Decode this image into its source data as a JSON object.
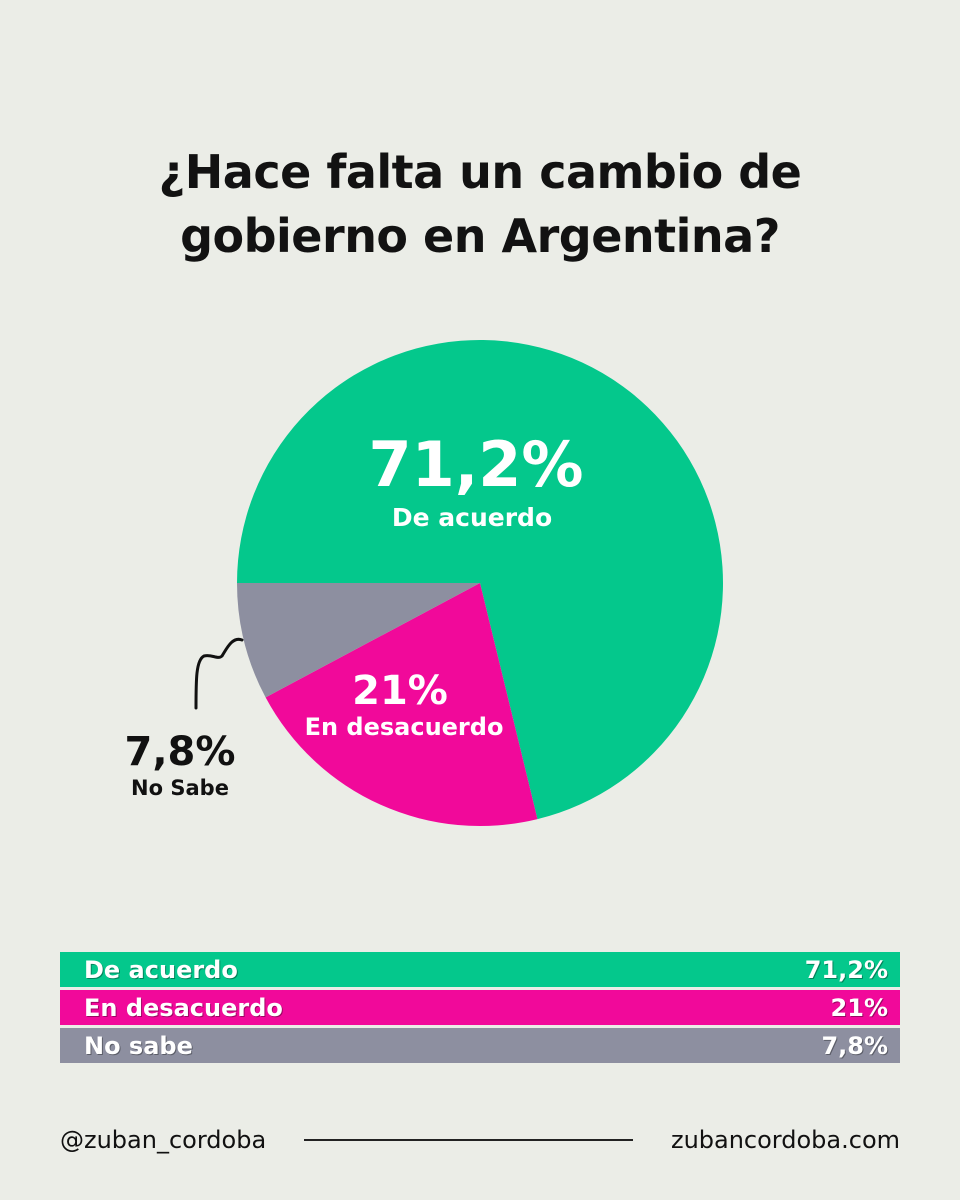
{
  "chart_data": {
    "type": "pie",
    "title": "¿Hace falta un cambio de gobierno en Argentina?",
    "title_lines": [
      "¿Hace falta un cambio de",
      "gobierno en Argentina?"
    ],
    "slices": [
      {
        "name": "De acuerdo",
        "value": 71.2,
        "label": "71,2%",
        "color": "#04c88c"
      },
      {
        "name": "En desacuerdo",
        "value": 21,
        "label": "21%",
        "color": "#f1099a"
      },
      {
        "name": "No Sabe",
        "value": 7.8,
        "label": "7,8%",
        "color": "#8d8fa0"
      }
    ],
    "legend_table": [
      {
        "name": "De acuerdo",
        "value_label": "71,2%",
        "color": "#04c88c"
      },
      {
        "name": "En desacuerdo",
        "value_label": "21%",
        "color": "#f1099a"
      },
      {
        "name": "No sabe",
        "value_label": "7,8%",
        "color": "#8d8fa0"
      }
    ]
  },
  "footer": {
    "handle": "@zuban_cordoba",
    "website": "zubancordoba.com"
  }
}
